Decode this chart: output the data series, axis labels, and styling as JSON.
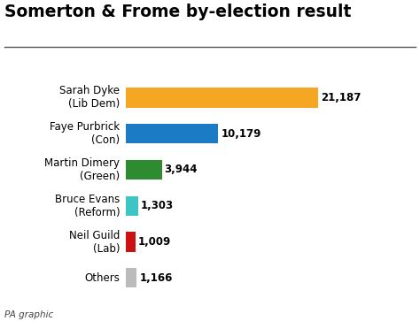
{
  "title": "Somerton & Frome by-election result",
  "candidates": [
    {
      "label": "Sarah Dyke\n(Lib Dem)",
      "value": 21187,
      "display": "21,187",
      "color": "#F5A623"
    },
    {
      "label": "Faye Purbrick\n(Con)",
      "value": 10179,
      "display": "10,179",
      "color": "#1B7BC4"
    },
    {
      "label": "Martin Dimery\n(Green)",
      "value": 3944,
      "display": "3,944",
      "color": "#2E8B2E"
    },
    {
      "label": "Bruce Evans\n(Reform)",
      "value": 1303,
      "display": "1,303",
      "color": "#3DC5C5"
    },
    {
      "label": "Neil Guild\n(Lab)",
      "value": 1009,
      "display": "1,009",
      "color": "#CC1111"
    },
    {
      "label": "Others",
      "value": 1166,
      "display": "1,166",
      "color": "#BBBBBB"
    }
  ],
  "footer": "PA graphic",
  "title_fontsize": 13.5,
  "label_fontsize": 8.5,
  "value_fontsize": 8.5,
  "footer_fontsize": 7.5,
  "bg_color": "#FFFFFF",
  "title_color": "#000000",
  "text_color": "#000000",
  "bar_height": 0.55,
  "xlim": [
    0,
    25000
  ],
  "fig_width": 4.74,
  "fig_height": 3.63,
  "dpi": 100
}
